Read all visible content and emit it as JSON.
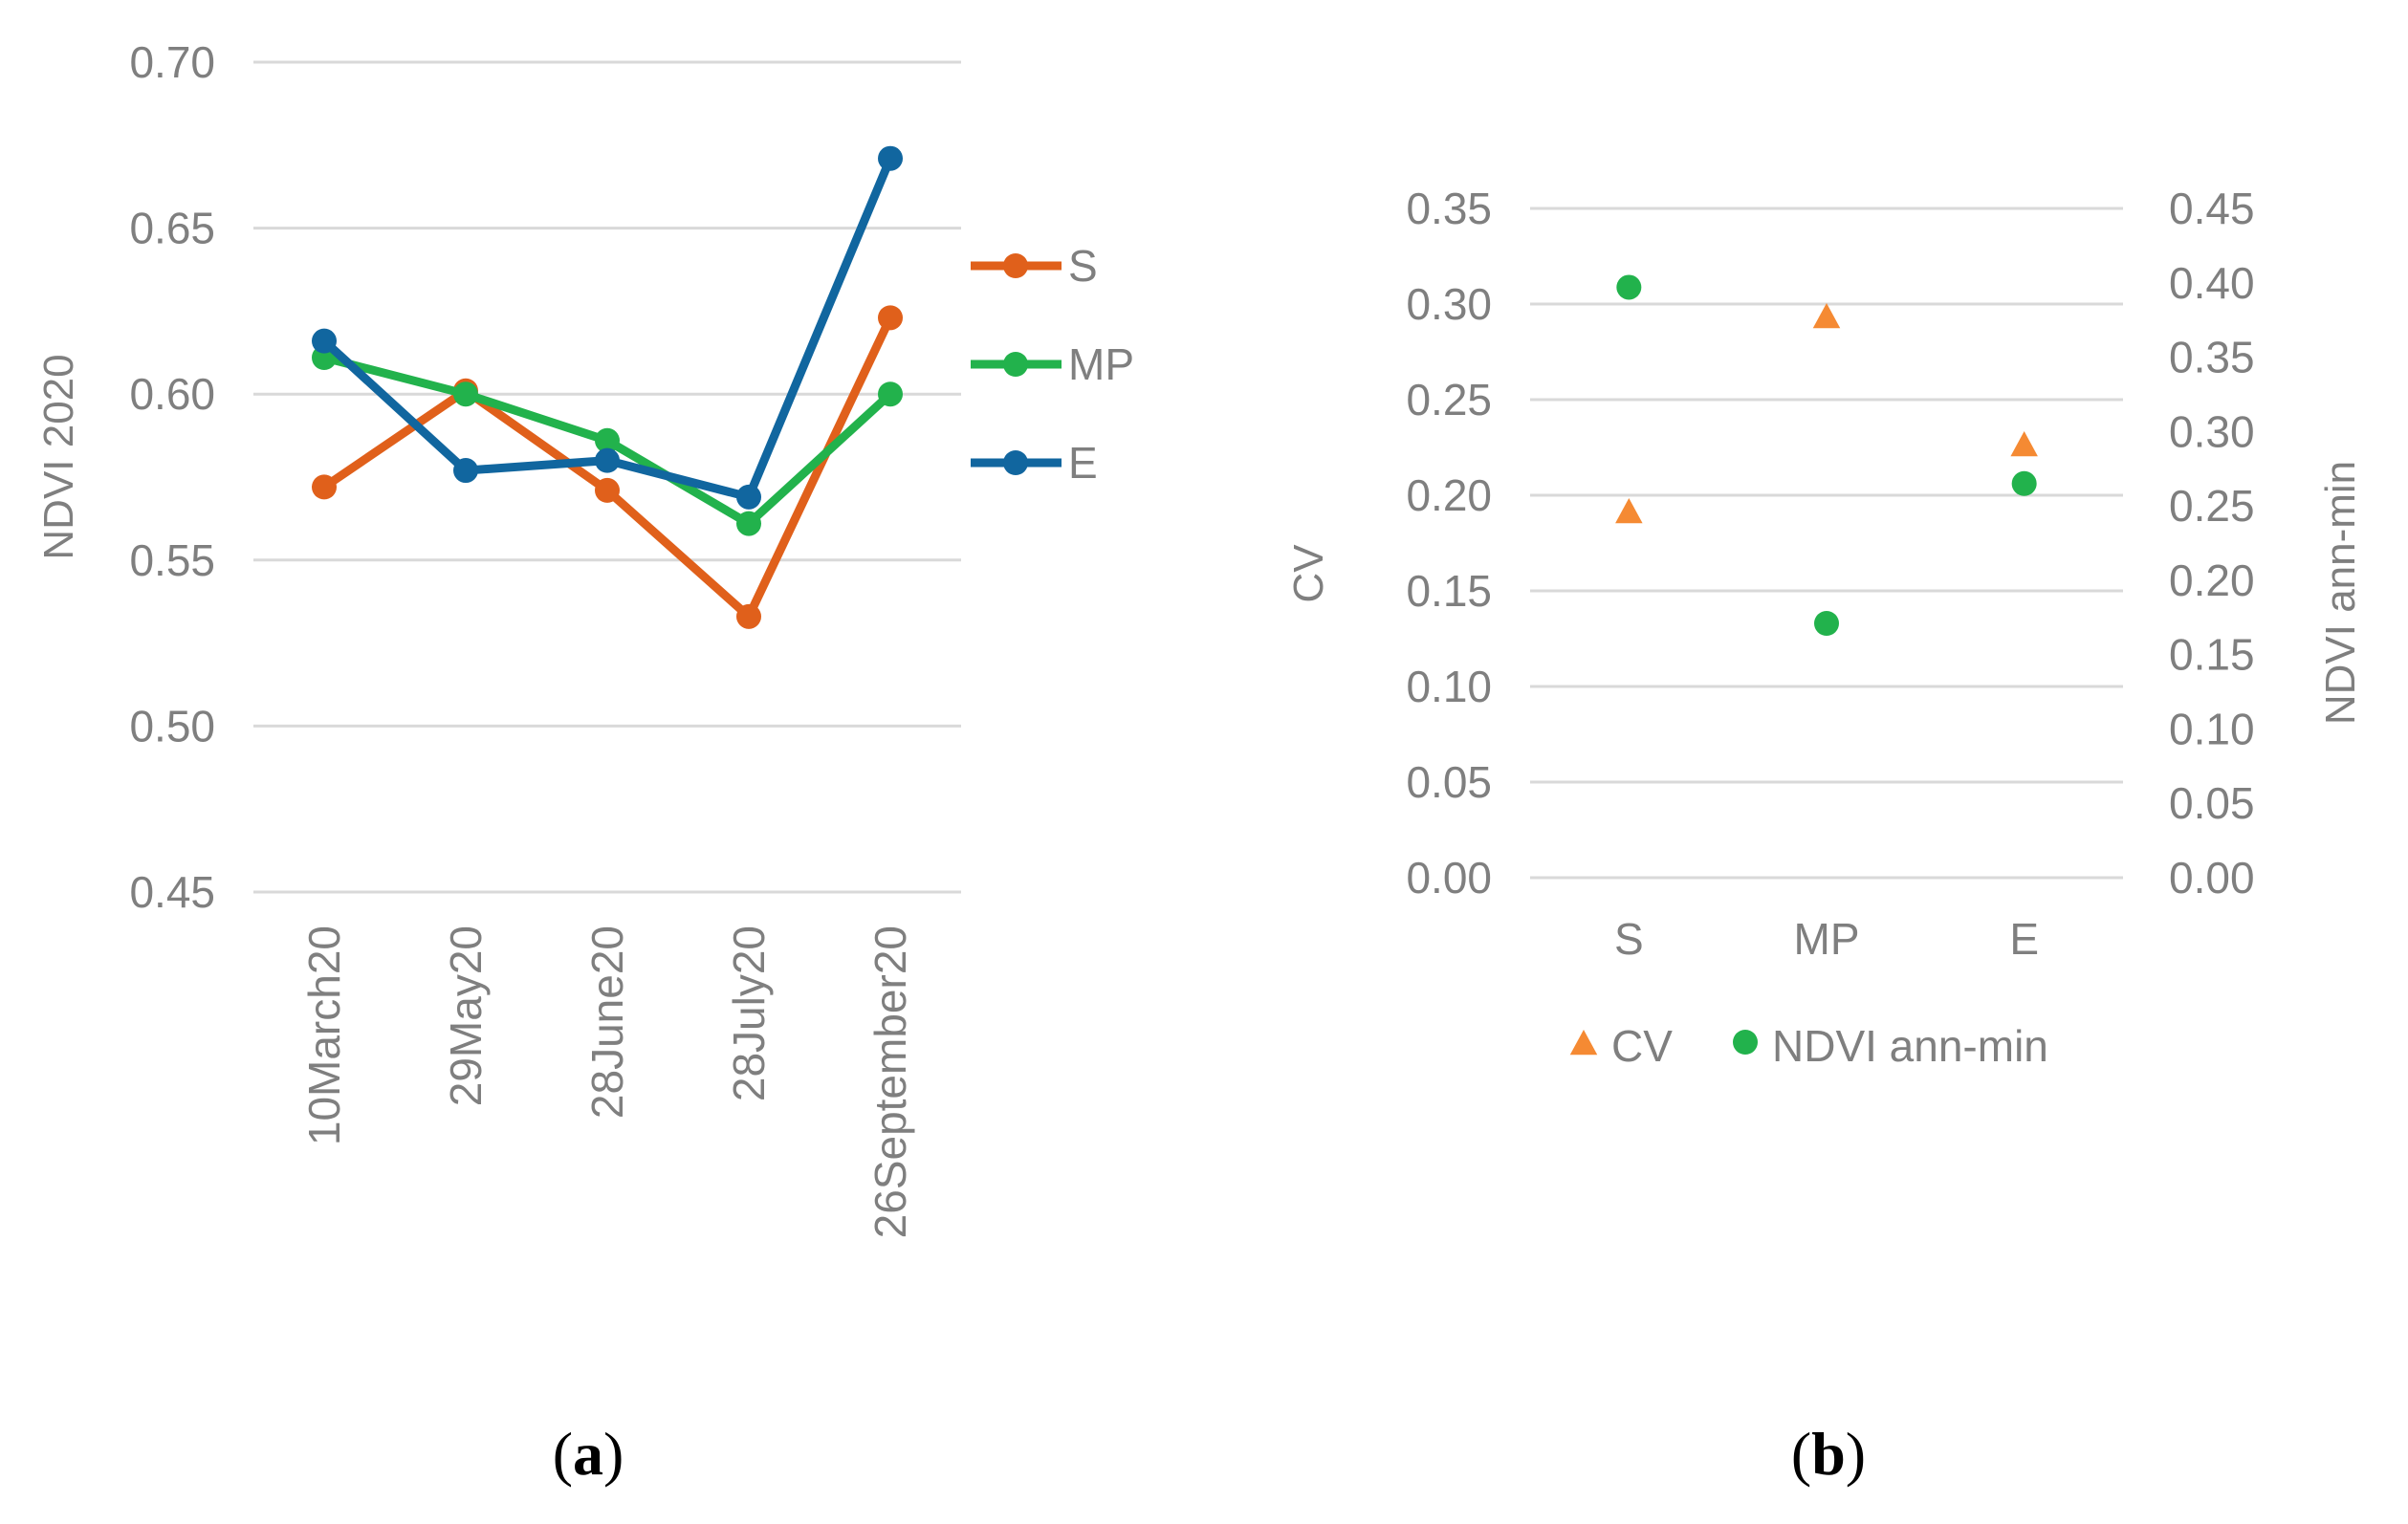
{
  "chart_data": [
    {
      "panel": "(a)",
      "panel_letter": "a",
      "type": "line",
      "ylabel": "NDVI 2020",
      "ylim": [
        0.45,
        0.7
      ],
      "yticks": [
        "0.45",
        "0.50",
        "0.55",
        "0.60",
        "0.65",
        "0.70"
      ],
      "categories": [
        "10March20",
        "29May20",
        "28June20",
        "28July20",
        "26September20"
      ],
      "series": [
        {
          "name": "S",
          "color": "#e0601b",
          "values": [
            0.572,
            0.601,
            0.571,
            0.533,
            0.623
          ]
        },
        {
          "name": "MP",
          "color": "#22b24c",
          "values": [
            0.611,
            0.6,
            0.586,
            0.561,
            0.6
          ]
        },
        {
          "name": "E",
          "color": "#11669f",
          "values": [
            0.616,
            0.577,
            0.58,
            0.569,
            0.671
          ]
        }
      ],
      "legend": "right",
      "grid": true
    },
    {
      "panel": "(b)",
      "panel_letter": "b",
      "type": "scatter",
      "ylabel": "CV",
      "ylim": [
        0.0,
        0.35
      ],
      "yticks": [
        "0.00",
        "0.05",
        "0.10",
        "0.15",
        "0.20",
        "0.25",
        "0.30",
        "0.35"
      ],
      "y2label": "NDVI ann-min",
      "y2lim": [
        0.0,
        0.45
      ],
      "y2ticks": [
        "0.00",
        "0.05",
        "0.10",
        "0.15",
        "0.20",
        "0.25",
        "0.30",
        "0.35",
        "0.40",
        "0.45"
      ],
      "categories": [
        "S",
        "MP",
        "E"
      ],
      "series": [
        {
          "name": "CV",
          "axis": "left",
          "marker": "triangle",
          "color": "#f58a33",
          "values": [
            0.191,
            0.293,
            0.226
          ]
        },
        {
          "name": "NDVI ann-min",
          "axis": "right",
          "marker": "circle",
          "color": "#22b24c",
          "values": [
            0.397,
            0.171,
            0.265
          ]
        }
      ],
      "legend": "bottom",
      "grid": true
    }
  ]
}
